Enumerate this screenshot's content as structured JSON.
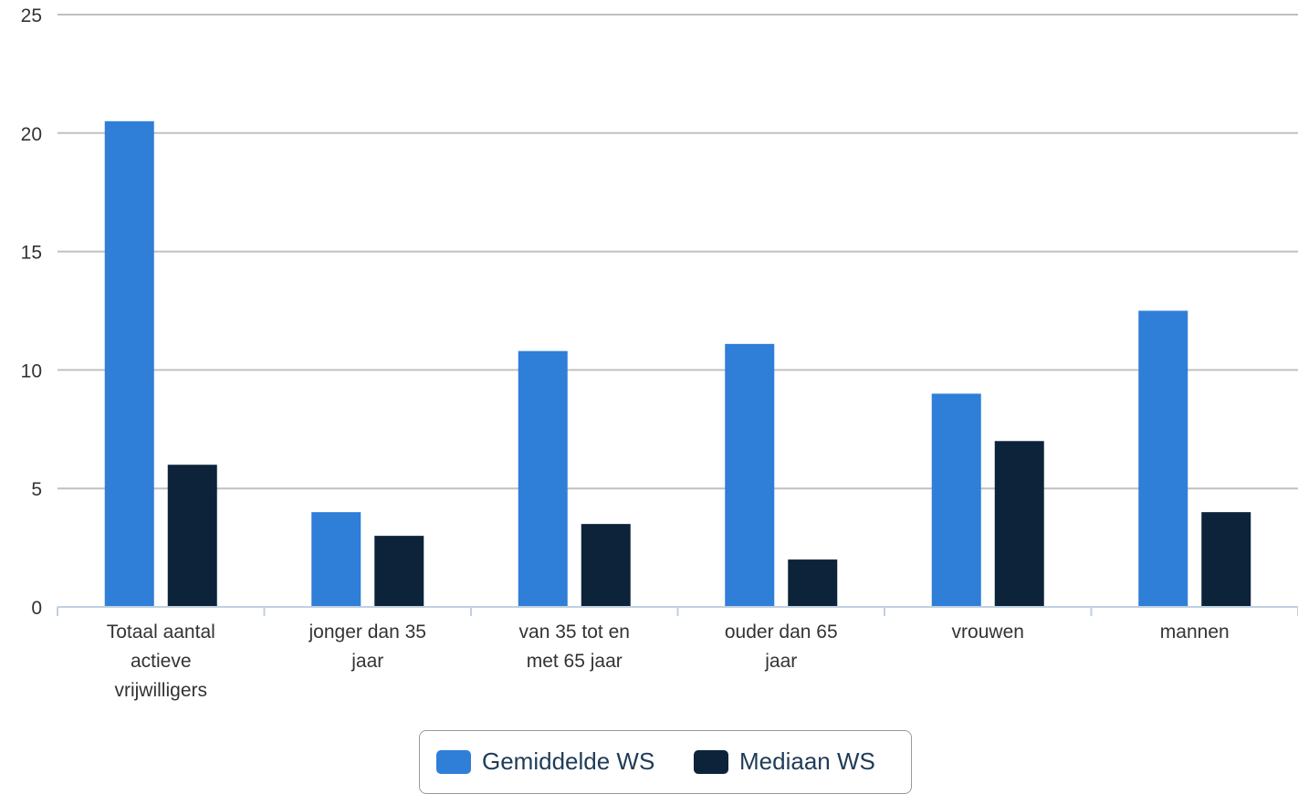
{
  "chart_data": {
    "type": "bar",
    "categories": [
      [
        "Totaal aantal",
        "actieve",
        "vrijwilligers"
      ],
      [
        "jonger dan 35",
        "jaar"
      ],
      [
        "van 35 tot en",
        "met 65 jaar"
      ],
      [
        "ouder dan 65",
        "jaar"
      ],
      [
        "vrouwen"
      ],
      [
        "mannen"
      ]
    ],
    "series": [
      {
        "name": "Gemiddelde WS",
        "color": "#2f7ed8",
        "values": [
          20.5,
          4.0,
          10.8,
          11.1,
          9.0,
          12.5
        ]
      },
      {
        "name": "Mediaan WS",
        "color": "#0d233a",
        "values": [
          6.0,
          3.0,
          3.5,
          2.0,
          7.0,
          4.0
        ]
      }
    ],
    "ylim": [
      0,
      25
    ],
    "yticks": [
      0,
      5,
      10,
      15,
      20,
      25
    ],
    "grid": true,
    "legend_position": "bottom-center"
  }
}
